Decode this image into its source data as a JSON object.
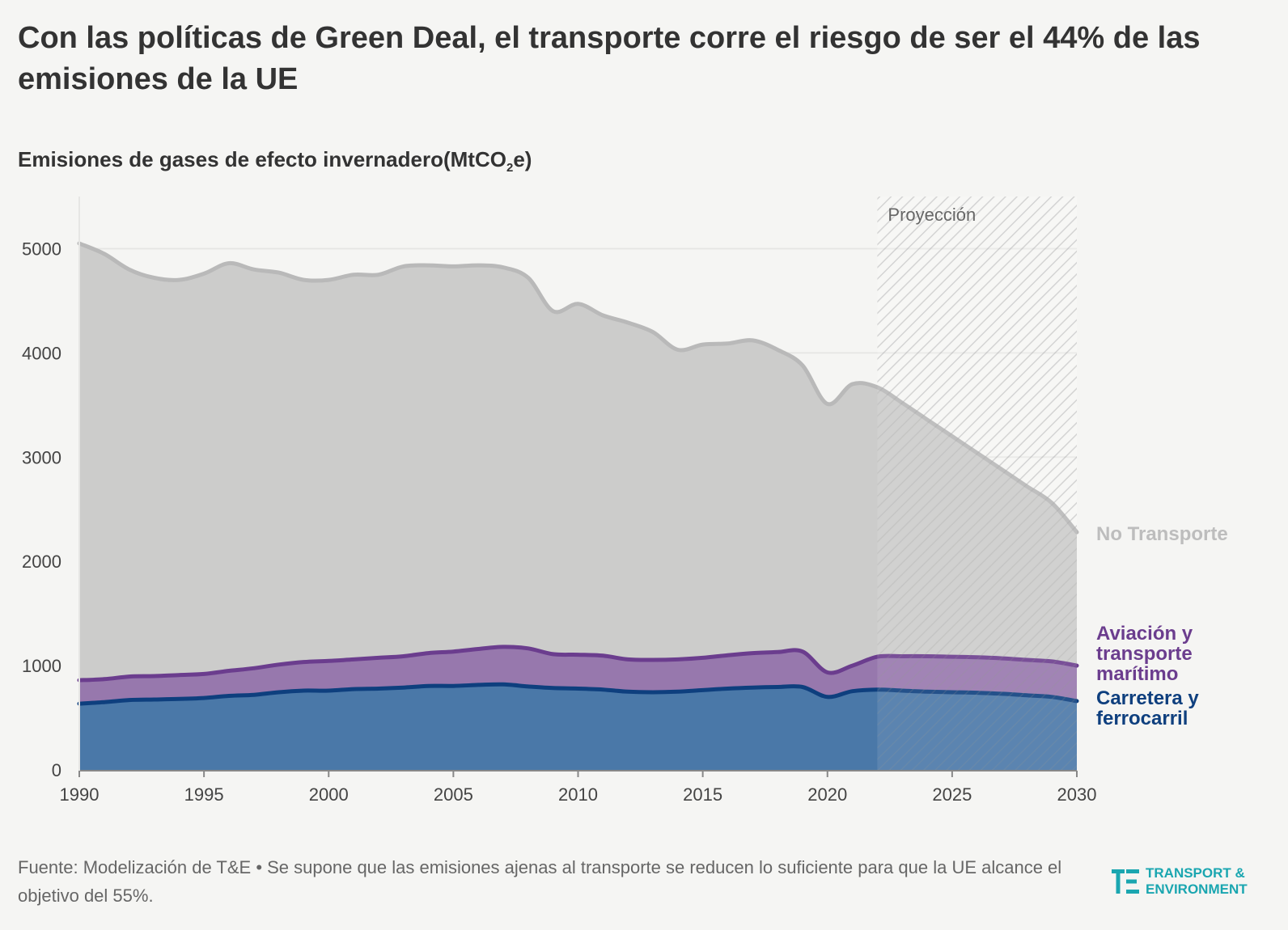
{
  "title": "Con las políticas de Green Deal, el transporte corre el riesgo de ser el 44% de las emisiones de la UE",
  "subtitle": {
    "main": "Emisiones de gases de efecto invernadero(MtCO",
    "sub": "2",
    "end": "e)"
  },
  "footer": "Fuente: Modelización de T&E • Se supone que las emisiones ajenas al transporte se reducen lo suficiente para que la UE alcance el objetivo del 55%.",
  "logo": {
    "line1": "TRANSPORT &",
    "line2": "ENVIRONMENT",
    "icon": "te-logo-icon"
  },
  "colors": {
    "background": "#f5f5f3",
    "no_transport_fill": "#cccccb",
    "no_transport_line": "#b9b9b9",
    "no_transport_label": "#bdbdbd",
    "aviation_fill": "#9778ad",
    "aviation_line": "#6b3d8e",
    "road_fill": "#4a78a8",
    "road_line": "#0e3f7e",
    "logo": "#1aa6b0"
  },
  "chart_data": {
    "type": "area",
    "stacked": true,
    "x": [
      1990,
      1991,
      1992,
      1993,
      1994,
      1995,
      1996,
      1997,
      1998,
      1999,
      2000,
      2001,
      2002,
      2003,
      2004,
      2005,
      2006,
      2007,
      2008,
      2009,
      2010,
      2011,
      2012,
      2013,
      2014,
      2015,
      2016,
      2017,
      2018,
      2019,
      2020,
      2021,
      2022,
      2023,
      2024,
      2025,
      2026,
      2027,
      2028,
      2029,
      2030
    ],
    "xlim": [
      1990,
      2030
    ],
    "ylim": [
      0,
      5500
    ],
    "x_ticks": [
      1990,
      1995,
      2000,
      2005,
      2010,
      2015,
      2020,
      2025,
      2030
    ],
    "y_ticks": [
      0,
      1000,
      2000,
      3000,
      4000,
      5000
    ],
    "grid": "horizontal",
    "projection": {
      "start": 2022,
      "end": 2030,
      "label": "Proyección"
    },
    "series": [
      {
        "name": "Carretera y ferrocarril",
        "key": "road",
        "values": [
          635,
          650,
          670,
          675,
          680,
          690,
          710,
          720,
          745,
          760,
          760,
          775,
          780,
          790,
          805,
          805,
          815,
          820,
          800,
          785,
          780,
          770,
          750,
          745,
          750,
          765,
          780,
          790,
          795,
          795,
          700,
          755,
          770,
          760,
          750,
          745,
          740,
          730,
          715,
          700,
          660
        ]
      },
      {
        "name": "Aviación y transporte marítimo",
        "key": "aviation",
        "values": [
          860,
          870,
          895,
          900,
          910,
          920,
          950,
          975,
          1010,
          1035,
          1045,
          1060,
          1075,
          1090,
          1120,
          1135,
          1160,
          1180,
          1165,
          1110,
          1105,
          1095,
          1060,
          1055,
          1060,
          1075,
          1100,
          1120,
          1130,
          1135,
          935,
          1000,
          1085,
          1090,
          1090,
          1085,
          1080,
          1070,
          1055,
          1040,
          1000
        ]
      },
      {
        "name": "No Transporte",
        "key": "no_transport",
        "values": [
          5050,
          4950,
          4800,
          4720,
          4700,
          4760,
          4860,
          4800,
          4770,
          4700,
          4700,
          4750,
          4750,
          4830,
          4840,
          4830,
          4840,
          4820,
          4720,
          4400,
          4470,
          4360,
          4290,
          4200,
          4030,
          4080,
          4090,
          4120,
          4030,
          3880,
          3510,
          3700,
          3670,
          3520,
          3360,
          3200,
          3040,
          2880,
          2720,
          2560,
          2280
        ]
      }
    ],
    "labels_note": "Stacked cumulative totals shown on the chart (top edge of each layer)"
  }
}
